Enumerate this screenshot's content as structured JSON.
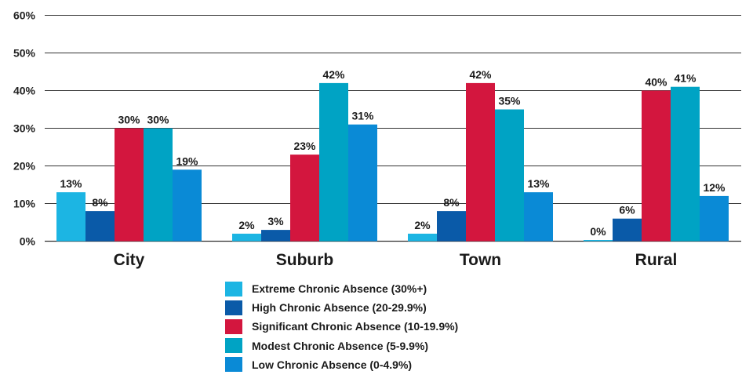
{
  "chart_data": {
    "type": "bar",
    "categories": [
      "City",
      "Suburb",
      "Town",
      "Rural"
    ],
    "series": [
      {
        "name": "Extreme Chronic Absence (30%+)",
        "color": "#1cb5e3",
        "values": [
          13,
          2,
          2,
          0
        ],
        "labels": [
          "13%",
          "2%",
          "2%",
          "0%"
        ]
      },
      {
        "name": "High Chronic Absence (20-29.9%)",
        "color": "#0a5aa8",
        "values": [
          8,
          3,
          8,
          6
        ],
        "labels": [
          "8%",
          "3%",
          "8%",
          "6%"
        ]
      },
      {
        "name": "Significant Chronic Absence (10-19.9%)",
        "color": "#d3163e",
        "values": [
          30,
          23,
          42,
          40
        ],
        "labels": [
          "30%",
          "23%",
          "42%",
          "40%"
        ]
      },
      {
        "name": "Modest Chronic Absence (5-9.9%)",
        "color": "#00a3c4",
        "values": [
          30,
          42,
          35,
          41
        ],
        "labels": [
          "30%",
          "42%",
          "35%",
          "41%"
        ]
      },
      {
        "name": "Low Chronic Absence (0-4.9%)",
        "color": "#0a8ad6",
        "values": [
          19,
          31,
          13,
          12
        ],
        "labels": [
          "19%",
          "31%",
          "13%",
          "12%"
        ]
      }
    ],
    "title": "",
    "xlabel": "",
    "ylabel": "",
    "ylim": [
      0,
      60
    ],
    "yticks": [
      0,
      10,
      20,
      30,
      40,
      50,
      60
    ],
    "ytick_labels": [
      "0%",
      "10%",
      "20%",
      "30%",
      "40%",
      "50%",
      "60%"
    ],
    "grid": true,
    "legend_position": "bottom"
  }
}
